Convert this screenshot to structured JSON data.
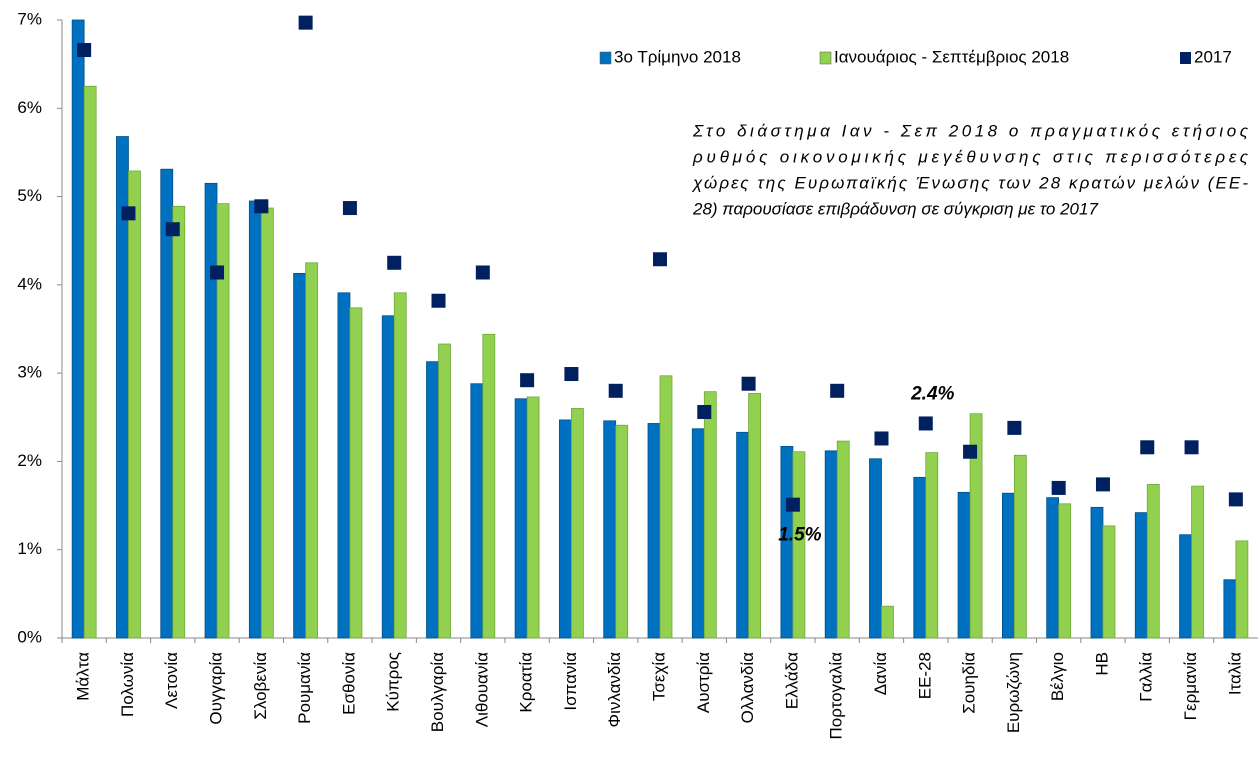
{
  "chart_data": {
    "type": "bar",
    "categories": [
      "Μάλτα",
      "Πολωνία",
      "Λετονία",
      "Ουγγαρία",
      "Σλοβενία",
      "Ρουμανία",
      "Εσθονία",
      "Κύπρος",
      "Βουλγαρία",
      "Λιθουανία",
      "Κροατία",
      "Ισπανία",
      "Φινλανδία",
      "Τσεχία",
      "Αυστρία",
      "Ολλανδία",
      "Ελλάδα",
      "Πορτογαλία",
      "Δανία",
      "ΕΕ-28",
      "Σουηδία",
      "Ευρωζώνη",
      "Βέλγιο",
      "ΗΒ",
      "Γαλλία",
      "Γερμανία",
      "Ιταλία"
    ],
    "series": [
      {
        "name": "3ο Τρίμηνο 2018",
        "color": "#0070c0",
        "values": [
          7.0,
          5.68,
          5.31,
          5.15,
          4.95,
          4.13,
          3.91,
          3.65,
          3.13,
          2.88,
          2.71,
          2.47,
          2.46,
          2.43,
          2.37,
          2.33,
          2.17,
          2.12,
          2.03,
          1.82,
          1.65,
          1.64,
          1.59,
          1.48,
          1.42,
          1.17,
          0.66
        ]
      },
      {
        "name": "Ιανουάριος - Σεπτέμβριος 2018",
        "color": "#92d050",
        "values": [
          6.25,
          5.29,
          4.89,
          4.92,
          4.87,
          4.25,
          3.74,
          3.91,
          3.33,
          3.44,
          2.73,
          2.6,
          2.41,
          2.97,
          2.79,
          2.77,
          2.11,
          2.23,
          0.36,
          2.1,
          2.54,
          2.07,
          1.52,
          1.27,
          1.74,
          1.72,
          1.1
        ]
      },
      {
        "name": "2017",
        "color": "#002060",
        "type": "marker",
        "values": [
          6.66,
          4.81,
          4.63,
          4.14,
          4.89,
          6.97,
          4.87,
          4.25,
          3.82,
          4.14,
          2.92,
          2.99,
          2.8,
          4.29,
          2.56,
          2.88,
          1.51,
          2.8,
          2.26,
          2.43,
          2.11,
          2.38,
          1.7,
          1.74,
          2.16,
          2.16,
          1.57
        ],
        "value_labels": [
          null,
          null,
          null,
          null,
          null,
          null,
          null,
          null,
          null,
          null,
          null,
          null,
          null,
          null,
          null,
          null,
          "1.5%",
          null,
          null,
          "2.4%",
          null,
          null,
          null,
          null,
          null,
          null,
          null
        ]
      }
    ],
    "ylim": [
      0,
      7
    ],
    "yticks": [
      {
        "value": 0,
        "label": "0%"
      },
      {
        "value": 1,
        "label": "1%"
      },
      {
        "value": 2,
        "label": "2%"
      },
      {
        "value": 3,
        "label": "3%"
      },
      {
        "value": 4,
        "label": "4%"
      },
      {
        "value": 5,
        "label": "5%"
      },
      {
        "value": 6,
        "label": "6%"
      },
      {
        "value": 7,
        "label": "7%"
      }
    ],
    "grid": false,
    "legend": "top-right",
    "note": [
      "Στο διάστημα Ιαν - Σεπ 2018 ο πραγματικός ετήσιος",
      "ρυθμός οικονομικής μεγέθυνσης στις περισσότερες",
      "χώρες της Ευρωπαϊκής Ένωσης των 28 κρατών μελών (ΕΕ-",
      "28) παρουσίασε επιβράδυνση σε σύγκριση με το 2017"
    ]
  }
}
